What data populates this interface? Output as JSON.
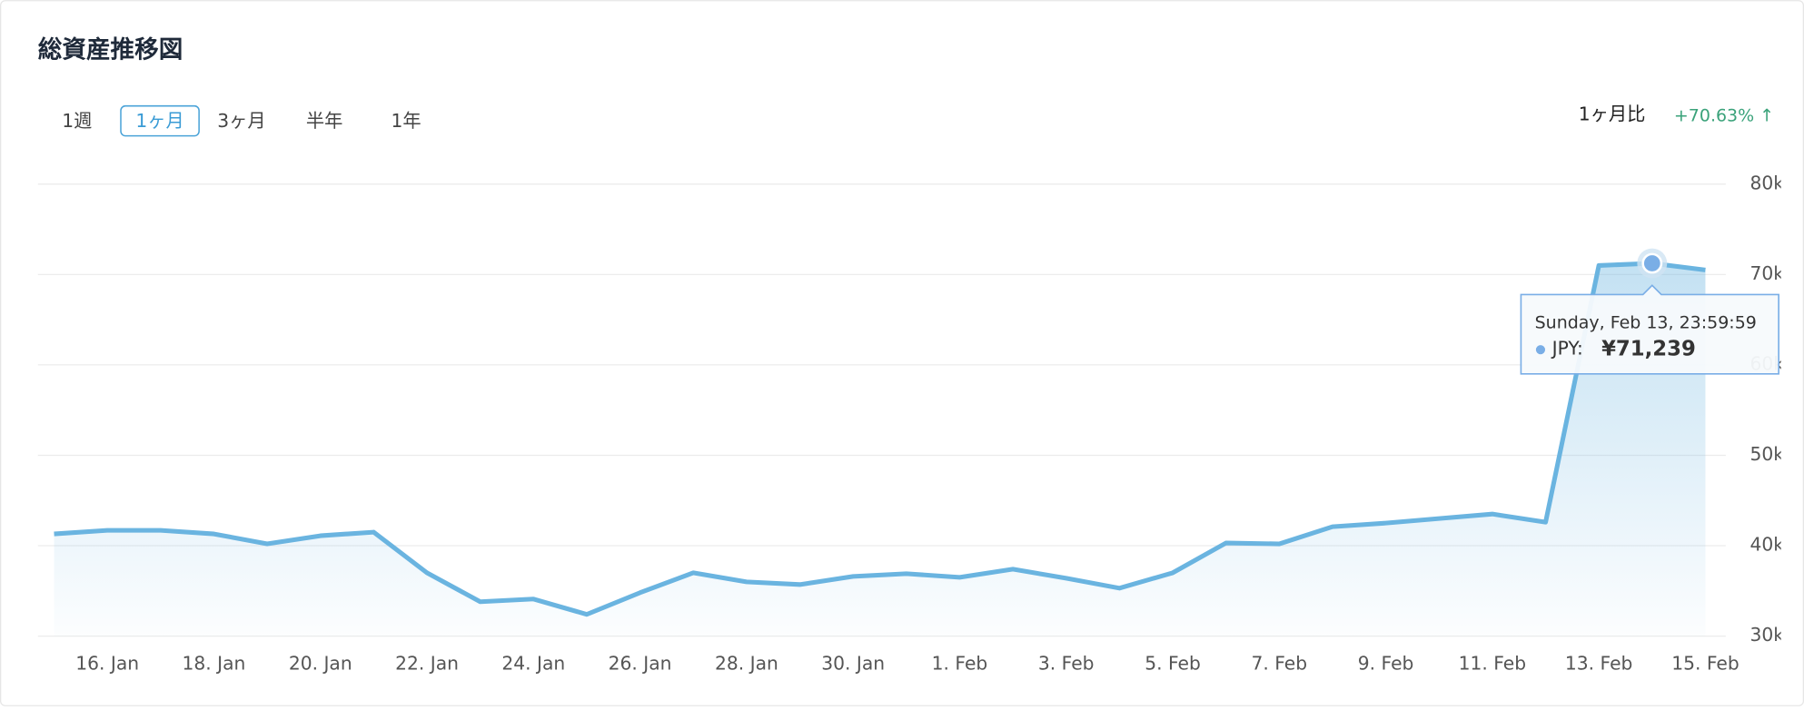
{
  "header": {
    "title": "総資産推移図",
    "ranges": [
      "1週",
      "1ヶ月",
      "3ヶ月",
      "半年",
      "1年"
    ],
    "selected": 1,
    "compare_label": "1ヶ月比",
    "compare_value": "+70.63% ↑"
  },
  "chart_data": {
    "type": "line",
    "categories": [
      null,
      "16. Jan",
      null,
      "18. Jan",
      null,
      "20. Jan",
      null,
      "22. Jan",
      null,
      "24. Jan",
      null,
      "26. Jan",
      null,
      "28. Jan",
      null,
      "30. Jan",
      null,
      "1. Feb",
      null,
      "3. Feb",
      null,
      "5. Feb",
      null,
      "7. Feb",
      null,
      "9. Feb",
      null,
      "11. Feb",
      null,
      "13. Feb",
      null,
      "15. Feb"
    ],
    "series": [
      {
        "name": "JPY",
        "color": "#6ab4e0",
        "values": [
          41300,
          41700,
          41700,
          41300,
          40200,
          41100,
          41500,
          37000,
          33800,
          34100,
          32400,
          34800,
          37000,
          36000,
          35700,
          36600,
          36900,
          36500,
          37400,
          36400,
          35300,
          37000,
          40300,
          40200,
          42100,
          42500,
          43000,
          43500,
          42600,
          71000,
          71239,
          70500
        ]
      }
    ],
    "ylim": [
      30000,
      80000
    ],
    "yticks": [
      {
        "value": 30000,
        "label": "30k"
      },
      {
        "value": 40000,
        "label": "40k"
      },
      {
        "value": 50000,
        "label": "50k"
      },
      {
        "value": 60000,
        "label": "60k"
      },
      {
        "value": 70000,
        "label": "70k"
      },
      {
        "value": 80000,
        "label": "80k"
      }
    ],
    "grid": true,
    "tooltip": {
      "index": 30,
      "title": "Sunday, Feb 13, 23:59:59",
      "label": "JPY:",
      "value_label": "¥71,239"
    }
  }
}
